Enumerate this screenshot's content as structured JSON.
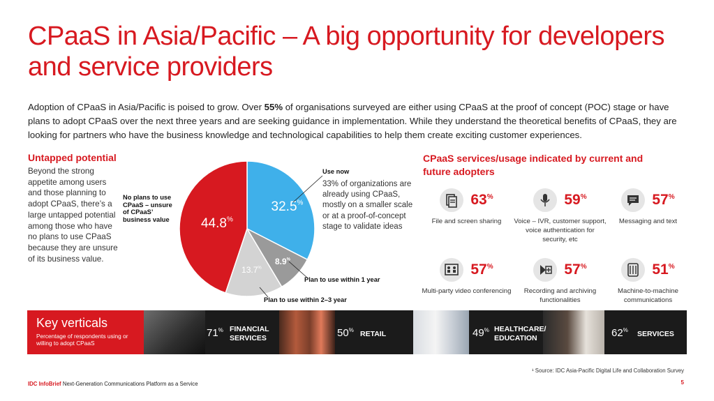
{
  "title": "CPaaS in Asia/Pacific – A big opportunity for developers and service providers",
  "intro": {
    "before": "Adoption of CPaaS in Asia/Pacific is poised to grow. Over ",
    "bold": "55%",
    "after": " of organisations surveyed are either using CPaaS at the proof of concept (POC) stage or have plans to adopt CPaaS over the next three years and are seeking guidance in implementation. While they understand the theoretical benefits of CPaaS, they are looking for partners who have the business knowledge and technological capabilities to help them create exciting customer experiences."
  },
  "untapped": {
    "title": "Untapped potential",
    "text": "Beyond the strong appetite among users and those planning to adopt CPaaS, there’s a large untapped potential among those who have no plans to use CPaaS because they are unsure of its business value."
  },
  "chart_data": {
    "type": "pie",
    "slices": [
      {
        "label": "Use now",
        "value": 32.5,
        "color": "#3fb0ea"
      },
      {
        "label": "Plan to use within 1 year",
        "value": 8.9,
        "color": "#9a9a9a"
      },
      {
        "label": "Plan to use within 2–3 year",
        "value": 13.7,
        "color": "#d3d3d3"
      },
      {
        "label": "No plans to use CPaaS – unsure of CPaaS’ business value",
        "value": 44.8,
        "color": "#d71920"
      }
    ],
    "value_labels": [
      "32.5",
      "8.9",
      "13.7",
      "44.8"
    ],
    "unit": "%"
  },
  "pie_labels": {
    "no_plans": "No plans to use CPaaS – unsure of CPaaS’ business value",
    "use_now": "Use now",
    "use_now_text": "33% of organizations are already using CPaaS, mostly on a smaller scale or at a proof-of-concept stage to validate ideas",
    "within_1yr": "Plan to use within 1 year",
    "within_23yr": "Plan to use within 2–3 year"
  },
  "services": {
    "title": "CPaaS services/usage indicated by current and future adopters",
    "items": [
      {
        "icon": "file-sharing-icon",
        "pct": "63",
        "label": "File and screen sharing"
      },
      {
        "icon": "microphone-icon",
        "pct": "59",
        "label": "Voice – IVR, customer support, voice authentication for security, etc"
      },
      {
        "icon": "chat-bubble-icon",
        "pct": "57",
        "label": "Messaging and text"
      },
      {
        "icon": "video-conference-icon",
        "pct": "57",
        "label": "Multi-party video conferencing"
      },
      {
        "icon": "record-icon",
        "pct": "57",
        "label": "Recording and archiving functionalities"
      },
      {
        "icon": "machine-icon",
        "pct": "51",
        "label": "Machine-to-machine communications"
      }
    ],
    "pct_unit": "%"
  },
  "verticals": {
    "title": "Key verticals",
    "subtitle": "Percentage of respondents using or willing to adopt CPaaS",
    "items": [
      {
        "pct": "71",
        "name_l1": "FINANCIAL",
        "name_l2": "SERVICES"
      },
      {
        "pct": "50",
        "name_l1": "RETAIL",
        "name_l2": ""
      },
      {
        "pct": "49",
        "name_l1": "HEALTHCARE/",
        "name_l2": "EDUCATION"
      },
      {
        "pct": "62",
        "name_l1": "SERVICES",
        "name_l2": ""
      }
    ],
    "pct_unit": "%"
  },
  "source": "¹ Source: IDC Asia-Pacific Digital Life and Collaboration Survey",
  "footer": {
    "brand": "IDC InfoBrief",
    "text": "Next-Generation Communications Platform as a Service"
  },
  "page_number": "5",
  "colors": {
    "accent": "#d71920",
    "blue": "#3fb0ea",
    "dark": "#1b1b1b"
  }
}
